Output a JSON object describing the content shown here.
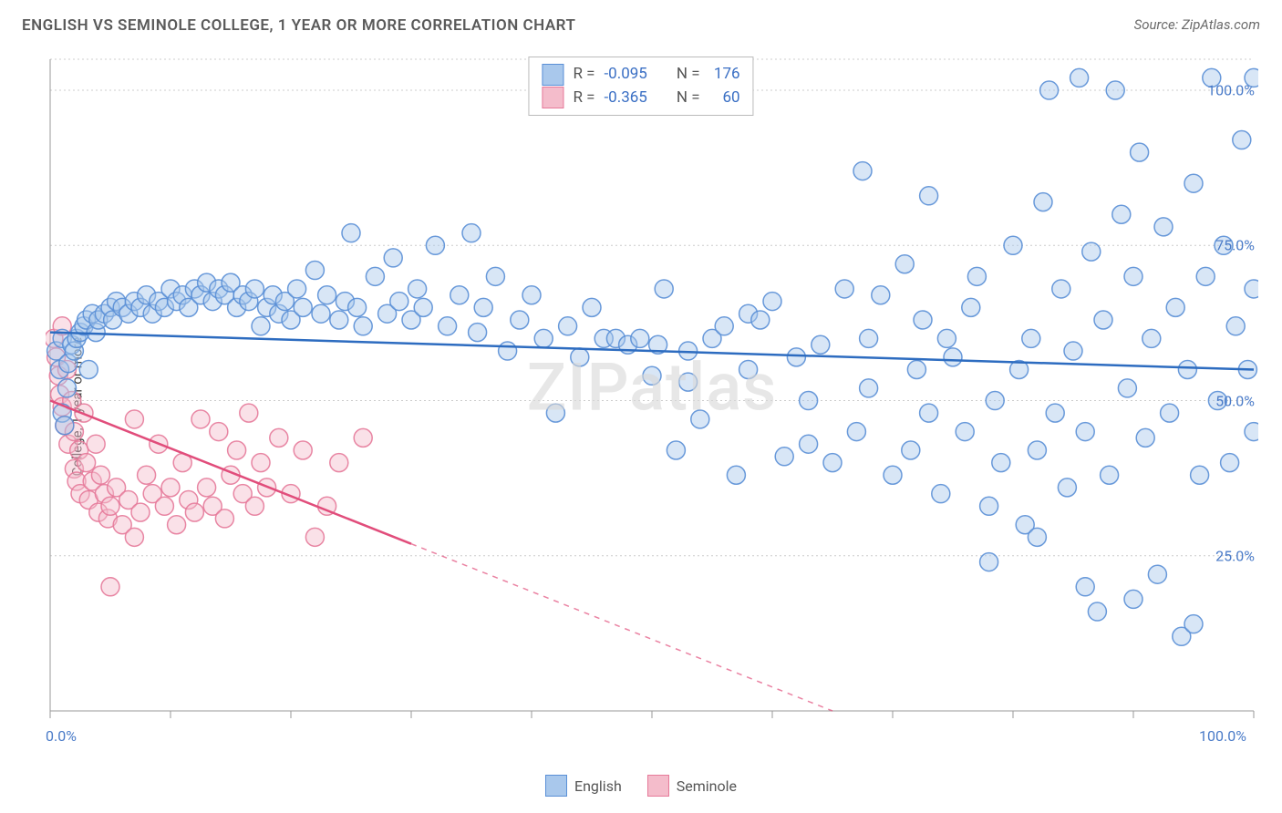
{
  "title": "ENGLISH VS SEMINOLE COLLEGE, 1 YEAR OR MORE CORRELATION CHART",
  "source": "Source: ZipAtlas.com",
  "watermark": "ZIPatlas",
  "y_axis_label": "College, 1 year or more",
  "chart": {
    "type": "scatter",
    "background_color": "#ffffff",
    "grid_color": "#cccccc",
    "xlim": [
      0,
      100
    ],
    "ylim": [
      0,
      105
    ],
    "x_ticks": [
      0,
      10,
      20,
      30,
      40,
      50,
      60,
      70,
      80,
      90,
      100
    ],
    "y_gridlines": [
      25,
      50,
      75,
      100
    ],
    "y_tick_labels": [
      {
        "v": 25,
        "label": "25.0%"
      },
      {
        "v": 50,
        "label": "50.0%"
      },
      {
        "v": 75,
        "label": "75.0%"
      },
      {
        "v": 100,
        "label": "100.0%"
      }
    ],
    "x_tick_labels": [
      {
        "v": 0,
        "label": "0.0%"
      },
      {
        "v": 100,
        "label": "100.0%"
      }
    ],
    "marker_radius": 10,
    "marker_opacity": 0.45,
    "series": [
      {
        "name": "English",
        "fill_color": "#a9c8ec",
        "stroke_color": "#5a8fd6",
        "line_color": "#2d6cc0",
        "line_width": 2.5,
        "R": "-0.095",
        "N": "176",
        "trend": {
          "x1": 0,
          "y1": 61,
          "x2": 100,
          "y2": 55,
          "dash_after_x": null
        },
        "points": [
          [
            0.5,
            58
          ],
          [
            0.8,
            55
          ],
          [
            1.0,
            48
          ],
          [
            1.0,
            60
          ],
          [
            1.2,
            46
          ],
          [
            1.4,
            52
          ],
          [
            1.5,
            56
          ],
          [
            1.8,
            59
          ],
          [
            2.0,
            58
          ],
          [
            2.2,
            60
          ],
          [
            2.5,
            61
          ],
          [
            2.8,
            62
          ],
          [
            3.0,
            63
          ],
          [
            3.2,
            55
          ],
          [
            3.5,
            64
          ],
          [
            3.8,
            61
          ],
          [
            4.0,
            63
          ],
          [
            4.5,
            64
          ],
          [
            5.0,
            65
          ],
          [
            5.2,
            63
          ],
          [
            5.5,
            66
          ],
          [
            6.0,
            65
          ],
          [
            6.5,
            64
          ],
          [
            7.0,
            66
          ],
          [
            7.5,
            65
          ],
          [
            8.0,
            67
          ],
          [
            8.5,
            64
          ],
          [
            9.0,
            66
          ],
          [
            9.5,
            65
          ],
          [
            10.0,
            68
          ],
          [
            10.5,
            66
          ],
          [
            11.0,
            67
          ],
          [
            11.5,
            65
          ],
          [
            12.0,
            68
          ],
          [
            12.5,
            67
          ],
          [
            13.0,
            69
          ],
          [
            13.5,
            66
          ],
          [
            14.0,
            68
          ],
          [
            14.5,
            67
          ],
          [
            15.0,
            69
          ],
          [
            15.5,
            65
          ],
          [
            16.0,
            67
          ],
          [
            16.5,
            66
          ],
          [
            17.0,
            68
          ],
          [
            17.5,
            62
          ],
          [
            18.0,
            65
          ],
          [
            18.5,
            67
          ],
          [
            19.0,
            64
          ],
          [
            19.5,
            66
          ],
          [
            20.0,
            63
          ],
          [
            20.5,
            68
          ],
          [
            21.0,
            65
          ],
          [
            22.0,
            71
          ],
          [
            22.5,
            64
          ],
          [
            23.0,
            67
          ],
          [
            24.0,
            63
          ],
          [
            24.5,
            66
          ],
          [
            25.0,
            77
          ],
          [
            25.5,
            65
          ],
          [
            26.0,
            62
          ],
          [
            27.0,
            70
          ],
          [
            28.0,
            64
          ],
          [
            28.5,
            73
          ],
          [
            29.0,
            66
          ],
          [
            30.0,
            63
          ],
          [
            30.5,
            68
          ],
          [
            31.0,
            65
          ],
          [
            32.0,
            75
          ],
          [
            33.0,
            62
          ],
          [
            34.0,
            67
          ],
          [
            35.0,
            77
          ],
          [
            35.5,
            61
          ],
          [
            36.0,
            65
          ],
          [
            37.0,
            70
          ],
          [
            38.0,
            58
          ],
          [
            39.0,
            63
          ],
          [
            40.0,
            67
          ],
          [
            41.0,
            60
          ],
          [
            42.0,
            48
          ],
          [
            43.0,
            62
          ],
          [
            44.0,
            57
          ],
          [
            45.0,
            65
          ],
          [
            46.0,
            60
          ],
          [
            47.0,
            60
          ],
          [
            48.0,
            59
          ],
          [
            49.0,
            60
          ],
          [
            50.0,
            54
          ],
          [
            50.5,
            59
          ],
          [
            51.0,
            68
          ],
          [
            52.0,
            42
          ],
          [
            53.0,
            58
          ],
          [
            54.0,
            47
          ],
          [
            55.0,
            60
          ],
          [
            56.0,
            62
          ],
          [
            57.0,
            38
          ],
          [
            58.0,
            64
          ],
          [
            59.0,
            63
          ],
          [
            60.0,
            66
          ],
          [
            61.0,
            41
          ],
          [
            62.0,
            57
          ],
          [
            63.0,
            43
          ],
          [
            64.0,
            59
          ],
          [
            65.0,
            40
          ],
          [
            66.0,
            68
          ],
          [
            67.0,
            45
          ],
          [
            67.5,
            87
          ],
          [
            68.0,
            60
          ],
          [
            69.0,
            67
          ],
          [
            70.0,
            38
          ],
          [
            71.0,
            72
          ],
          [
            71.5,
            42
          ],
          [
            72.0,
            55
          ],
          [
            72.5,
            63
          ],
          [
            73.0,
            83
          ],
          [
            74.0,
            35
          ],
          [
            74.5,
            60
          ],
          [
            75.0,
            57
          ],
          [
            76.0,
            45
          ],
          [
            76.5,
            65
          ],
          [
            77.0,
            70
          ],
          [
            78.0,
            24
          ],
          [
            78.5,
            50
          ],
          [
            79.0,
            40
          ],
          [
            80.0,
            75
          ],
          [
            80.5,
            55
          ],
          [
            81.0,
            30
          ],
          [
            81.5,
            60
          ],
          [
            82.0,
            42
          ],
          [
            82.5,
            82
          ],
          [
            83.0,
            100
          ],
          [
            83.5,
            48
          ],
          [
            84.0,
            68
          ],
          [
            84.5,
            36
          ],
          [
            85.0,
            58
          ],
          [
            85.5,
            102
          ],
          [
            86.0,
            45
          ],
          [
            86.5,
            74
          ],
          [
            87.0,
            16
          ],
          [
            87.5,
            63
          ],
          [
            88.0,
            38
          ],
          [
            88.5,
            100
          ],
          [
            89.0,
            80
          ],
          [
            89.5,
            52
          ],
          [
            90.0,
            70
          ],
          [
            90.5,
            90
          ],
          [
            91.0,
            44
          ],
          [
            91.5,
            60
          ],
          [
            92.0,
            22
          ],
          [
            92.5,
            78
          ],
          [
            93.0,
            48
          ],
          [
            93.5,
            65
          ],
          [
            94.0,
            12
          ],
          [
            94.5,
            55
          ],
          [
            95.0,
            85
          ],
          [
            95.5,
            38
          ],
          [
            96.0,
            70
          ],
          [
            96.5,
            102
          ],
          [
            97.0,
            50
          ],
          [
            97.5,
            75
          ],
          [
            98.0,
            40
          ],
          [
            98.5,
            62
          ],
          [
            99.0,
            92
          ],
          [
            99.5,
            55
          ],
          [
            100.0,
            45
          ],
          [
            100.0,
            68
          ],
          [
            100.0,
            102
          ],
          [
            95.0,
            14
          ],
          [
            90.0,
            18
          ],
          [
            86.0,
            20
          ],
          [
            82.0,
            28
          ],
          [
            78.0,
            33
          ],
          [
            73.0,
            48
          ],
          [
            68.0,
            52
          ],
          [
            63.0,
            50
          ],
          [
            58.0,
            55
          ],
          [
            53.0,
            53
          ]
        ]
      },
      {
        "name": "Seminole",
        "fill_color": "#f4bccb",
        "stroke_color": "#e67a9a",
        "line_color": "#e14d7b",
        "line_width": 2.5,
        "R": "-0.365",
        "N": "60",
        "trend": {
          "x1": 0,
          "y1": 50,
          "x2": 65,
          "y2": 0,
          "dash_after_x": 30
        },
        "points": [
          [
            0.3,
            60
          ],
          [
            0.5,
            57
          ],
          [
            0.7,
            54
          ],
          [
            0.8,
            51
          ],
          [
            1.0,
            49
          ],
          [
            1.0,
            62
          ],
          [
            1.2,
            46
          ],
          [
            1.4,
            55
          ],
          [
            1.5,
            43
          ],
          [
            1.8,
            50
          ],
          [
            2.0,
            39
          ],
          [
            2.0,
            45
          ],
          [
            2.2,
            37
          ],
          [
            2.4,
            42
          ],
          [
            2.5,
            35
          ],
          [
            2.8,
            48
          ],
          [
            3.0,
            40
          ],
          [
            3.2,
            34
          ],
          [
            3.5,
            37
          ],
          [
            3.8,
            43
          ],
          [
            4.0,
            32
          ],
          [
            4.2,
            38
          ],
          [
            4.5,
            35
          ],
          [
            4.8,
            31
          ],
          [
            5.0,
            33
          ],
          [
            5.5,
            36
          ],
          [
            6.0,
            30
          ],
          [
            6.5,
            34
          ],
          [
            7.0,
            47
          ],
          [
            7.5,
            32
          ],
          [
            8.0,
            38
          ],
          [
            8.5,
            35
          ],
          [
            9.0,
            43
          ],
          [
            9.5,
            33
          ],
          [
            10.0,
            36
          ],
          [
            10.5,
            30
          ],
          [
            11.0,
            40
          ],
          [
            11.5,
            34
          ],
          [
            12.0,
            32
          ],
          [
            12.5,
            47
          ],
          [
            13.0,
            36
          ],
          [
            13.5,
            33
          ],
          [
            14.0,
            45
          ],
          [
            14.5,
            31
          ],
          [
            15.0,
            38
          ],
          [
            15.5,
            42
          ],
          [
            16.0,
            35
          ],
          [
            16.5,
            48
          ],
          [
            17.0,
            33
          ],
          [
            17.5,
            40
          ],
          [
            18.0,
            36
          ],
          [
            5.0,
            20
          ],
          [
            7.0,
            28
          ],
          [
            19.0,
            44
          ],
          [
            20.0,
            35
          ],
          [
            21.0,
            42
          ],
          [
            22.0,
            28
          ],
          [
            24.0,
            40
          ],
          [
            26.0,
            44
          ],
          [
            23.0,
            33
          ]
        ]
      }
    ]
  },
  "legend_top": {
    "rows": [
      {
        "swatch_fill": "#a9c8ec",
        "swatch_border": "#5a8fd6",
        "R_label": "R =",
        "R_val": "-0.095",
        "N_label": "N =",
        "N_val": "176"
      },
      {
        "swatch_fill": "#f4bccb",
        "swatch_border": "#e67a9a",
        "R_label": "R =",
        "R_val": "-0.365",
        "N_label": "N =",
        "N_val": "60"
      }
    ]
  },
  "legend_bottom": {
    "items": [
      {
        "swatch_fill": "#a9c8ec",
        "swatch_border": "#5a8fd6",
        "label": "English"
      },
      {
        "swatch_fill": "#f4bccb",
        "swatch_border": "#e67a9a",
        "label": "Seminole"
      }
    ]
  }
}
